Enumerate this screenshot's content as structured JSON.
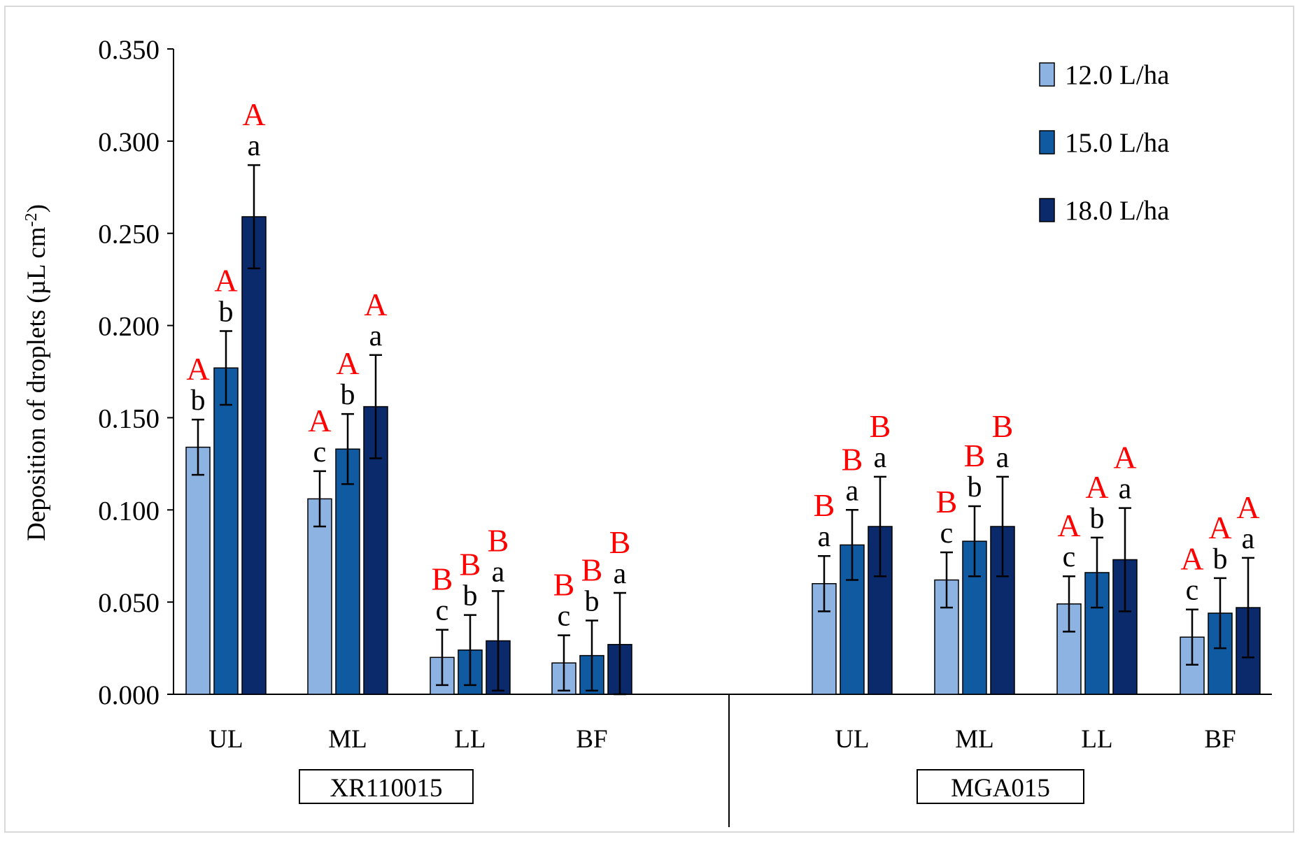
{
  "chart_data": {
    "type": "bar",
    "ylabel": "Deposition of droplets (µL cm",
    "ylabel_sup": "-2",
    "ylabel_end": ")",
    "ylim": [
      0,
      0.35
    ],
    "yticks": [
      "0.000",
      "0.050",
      "0.100",
      "0.150",
      "0.200",
      "0.250",
      "0.300",
      "0.350"
    ],
    "groups": [
      {
        "nozzle": "XR110015",
        "categories": [
          {
            "label": "UL",
            "bars": [
              {
                "value": 0.134,
                "error": 0.015,
                "letter": "b",
                "cap": "A"
              },
              {
                "value": 0.177,
                "error": 0.02,
                "letter": "b",
                "cap": "A"
              },
              {
                "value": 0.259,
                "error": 0.028,
                "letter": "a",
                "cap": "A"
              }
            ]
          },
          {
            "label": "ML",
            "bars": [
              {
                "value": 0.106,
                "error": 0.015,
                "letter": "c",
                "cap": "A"
              },
              {
                "value": 0.133,
                "error": 0.019,
                "letter": "b",
                "cap": "A"
              },
              {
                "value": 0.156,
                "error": 0.028,
                "letter": "a",
                "cap": "A"
              }
            ]
          },
          {
            "label": "LL",
            "bars": [
              {
                "value": 0.02,
                "error": 0.015,
                "letter": "c",
                "cap": "B"
              },
              {
                "value": 0.024,
                "error": 0.019,
                "letter": "b",
                "cap": "B"
              },
              {
                "value": 0.029,
                "error": 0.027,
                "letter": "a",
                "cap": "B"
              }
            ]
          },
          {
            "label": "BF",
            "bars": [
              {
                "value": 0.017,
                "error": 0.015,
                "letter": "c",
                "cap": "B"
              },
              {
                "value": 0.021,
                "error": 0.019,
                "letter": "b",
                "cap": "B"
              },
              {
                "value": 0.027,
                "error": 0.028,
                "letter": "a",
                "cap": "B"
              }
            ]
          }
        ]
      },
      {
        "nozzle": "MGA015",
        "categories": [
          {
            "label": "UL",
            "bars": [
              {
                "value": 0.06,
                "error": 0.015,
                "letter": "a",
                "cap": "B"
              },
              {
                "value": 0.081,
                "error": 0.019,
                "letter": "a",
                "cap": "B"
              },
              {
                "value": 0.091,
                "error": 0.027,
                "letter": "a",
                "cap": "B"
              }
            ]
          },
          {
            "label": "ML",
            "bars": [
              {
                "value": 0.062,
                "error": 0.015,
                "letter": "c",
                "cap": "B"
              },
              {
                "value": 0.083,
                "error": 0.019,
                "letter": "b",
                "cap": "B"
              },
              {
                "value": 0.091,
                "error": 0.027,
                "letter": "a",
                "cap": "B"
              }
            ]
          },
          {
            "label": "LL",
            "bars": [
              {
                "value": 0.049,
                "error": 0.015,
                "letter": "c",
                "cap": "A"
              },
              {
                "value": 0.066,
                "error": 0.019,
                "letter": "b",
                "cap": "A"
              },
              {
                "value": 0.073,
                "error": 0.028,
                "letter": "a",
                "cap": "A"
              }
            ]
          },
          {
            "label": "BF",
            "bars": [
              {
                "value": 0.031,
                "error": 0.015,
                "letter": "c",
                "cap": "A"
              },
              {
                "value": 0.044,
                "error": 0.019,
                "letter": "b",
                "cap": "A"
              },
              {
                "value": 0.047,
                "error": 0.027,
                "letter": "a",
                "cap": "A"
              }
            ]
          }
        ]
      }
    ],
    "series": [
      {
        "name": "12.0 L/ha",
        "color": "#8db3e2"
      },
      {
        "name": "15.0 L/ha",
        "color": "#0f5aa0"
      },
      {
        "name": "18.0 L/ha",
        "color": "#0b2a6b"
      }
    ],
    "legend_position": "top-right",
    "letter_color": "#000000",
    "cap_color": "#ff0000"
  }
}
